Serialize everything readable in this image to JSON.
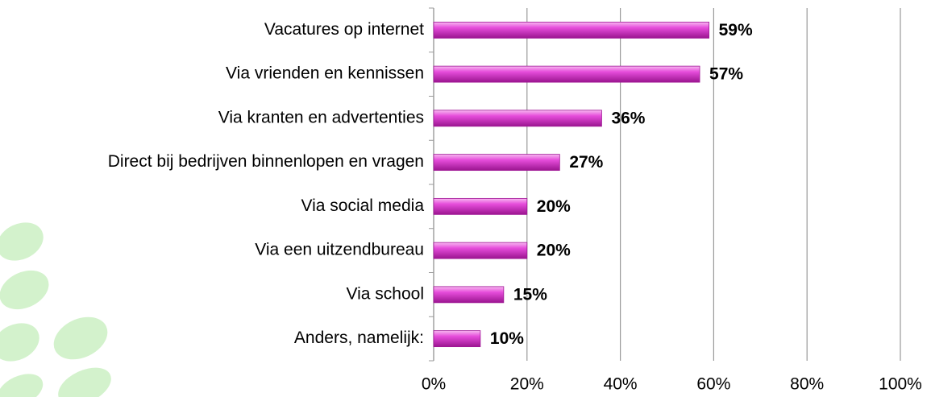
{
  "chart_data": {
    "type": "bar",
    "orientation": "horizontal",
    "categories": [
      "Vacatures op internet",
      "Via vrienden en kennissen",
      "Via kranten en advertenties",
      "Direct bij bedrijven binnenlopen en vragen",
      "Via social media",
      "Via een uitzendbureau",
      "Via school",
      "Anders, namelijk:"
    ],
    "values": [
      59,
      57,
      36,
      27,
      20,
      20,
      15,
      10
    ],
    "value_labels": [
      "59%",
      "57%",
      "36%",
      "27%",
      "20%",
      "20%",
      "15%",
      "10%"
    ],
    "color": "#e23fd6",
    "xlim": [
      0,
      100
    ],
    "xticks": [
      {
        "value": 0,
        "label": "0%"
      },
      {
        "value": 20,
        "label": "20%"
      },
      {
        "value": 40,
        "label": "40%"
      },
      {
        "value": 60,
        "label": "60%"
      },
      {
        "value": 80,
        "label": "80%"
      },
      {
        "value": 100,
        "label": "100%"
      }
    ],
    "grid": true
  }
}
